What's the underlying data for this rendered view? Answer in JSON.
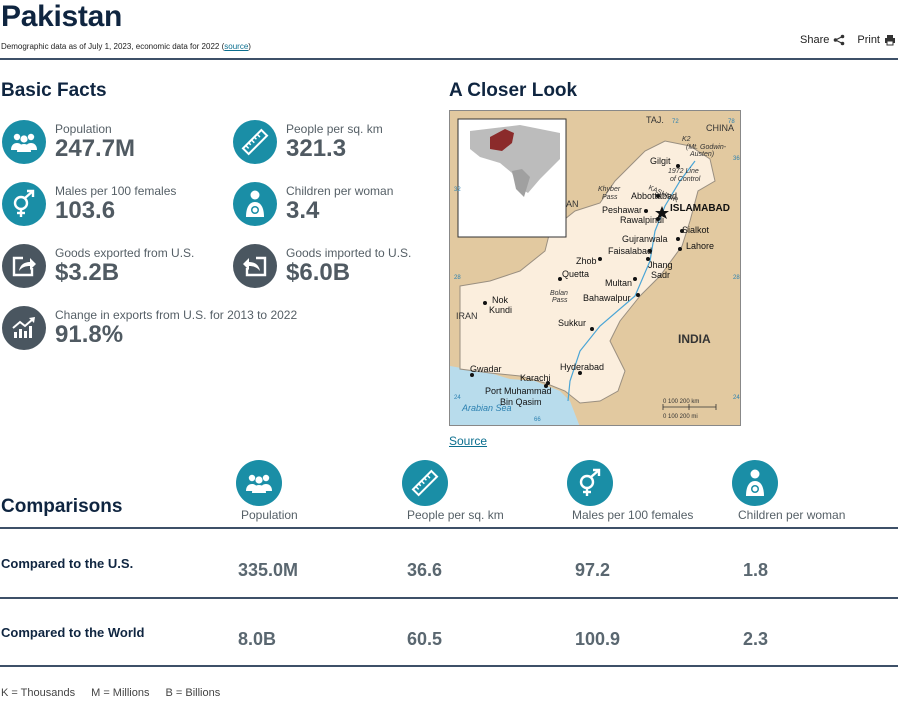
{
  "header": {
    "title": "Pakistan",
    "subtitle_prefix": "Demographic data as of July 1, 2023, economic data for 2022 (",
    "subtitle_link": "source",
    "subtitle_suffix": ")",
    "share_label": "Share",
    "print_label": "Print"
  },
  "basic_facts": {
    "heading": "Basic Facts",
    "items": [
      {
        "label": "Population",
        "value": "247.7M",
        "icon": "people-icon"
      },
      {
        "label": "People per sq. km",
        "value": "321.3",
        "icon": "ruler-icon"
      },
      {
        "label": "Males per 100 females",
        "value": "103.6",
        "icon": "gender-icon"
      },
      {
        "label": "Children per woman",
        "value": "3.4",
        "icon": "mother-child-icon"
      },
      {
        "label": "Goods exported from U.S.",
        "value": "$3.2B",
        "icon": "export-icon"
      },
      {
        "label": "Goods imported to U.S.",
        "value": "$6.0B",
        "icon": "import-icon"
      },
      {
        "label": "Change in exports from U.S. for 2013 to 2022",
        "value": "91.8%",
        "icon": "trend-chart-icon"
      }
    ]
  },
  "closer_look": {
    "heading": "A Closer Look",
    "source_link": "Source",
    "map_labels": {
      "taj": "TAJ.",
      "china": "CHINA",
      "k2": "K2",
      "k2_sub": "(Mt. Godwin-Austen)",
      "gilgit": "Gilgit",
      "line_control": "1972 Line of Control",
      "kashmir": "KASHMIR",
      "khyber": "Khyber Pass",
      "abbottabad": "Abbottabad",
      "peshawar": "Peshawar",
      "rawalpindi": "Rawalpindi",
      "islamabad": "ISLAMABAD",
      "sialkot": "Sialkot",
      "gujranwala": "Gujranwala",
      "lahore": "Lahore",
      "faisalabad": "Faisalabad",
      "zhob": "Zhob",
      "jhang": "Jhang",
      "sadr": "Sadr",
      "quetta": "Quetta",
      "multan": "Multan",
      "bolan": "Bolan Pass",
      "bahawalpur": "Bahawalpur",
      "nok_kundi": "Nok Kundi",
      "iran": "IRAN",
      "sukkur": "Sukkur",
      "india": "INDIA",
      "hyderabad": "Hyderabad",
      "gwadar": "Gwadar",
      "karachi": "Karachi",
      "port_muhammad": "Port Muhammad",
      "bin_qasim": "Bin Qasim",
      "arabian_sea": "Arabian Sea",
      "an": "AN",
      "lat36": "36",
      "lat32": "32",
      "lat28": "28",
      "lat24": "24",
      "lon72": "72",
      "lon78": "78",
      "lon66": "66",
      "lon30": "30",
      "lon20b": "24",
      "lon28b": "28",
      "lon32b": "32",
      "scale_km": "0   100  200 km",
      "scale_mi": "0      100      200 mi"
    }
  },
  "comparisons": {
    "heading": "Comparisons",
    "columns": [
      {
        "label": "Population",
        "icon": "people-icon"
      },
      {
        "label": "People per sq. km",
        "icon": "ruler-icon"
      },
      {
        "label": "Males per 100 females",
        "icon": "gender-icon"
      },
      {
        "label": "Children per woman",
        "icon": "mother-child-icon"
      }
    ],
    "rows": [
      {
        "label": "Compared to the U.S.",
        "values": [
          "335.0M",
          "36.6",
          "97.2",
          "1.8"
        ]
      },
      {
        "label": "Compared to the World",
        "values": [
          "8.0B",
          "60.5",
          "100.9",
          "2.3"
        ]
      }
    ]
  },
  "legend": [
    "K = Thousands",
    "M = Millions",
    "B = Billions"
  ],
  "colors": {
    "accent": "#1a8ea6",
    "icon_gray": "#4a5660",
    "heading": "#0f2540"
  }
}
